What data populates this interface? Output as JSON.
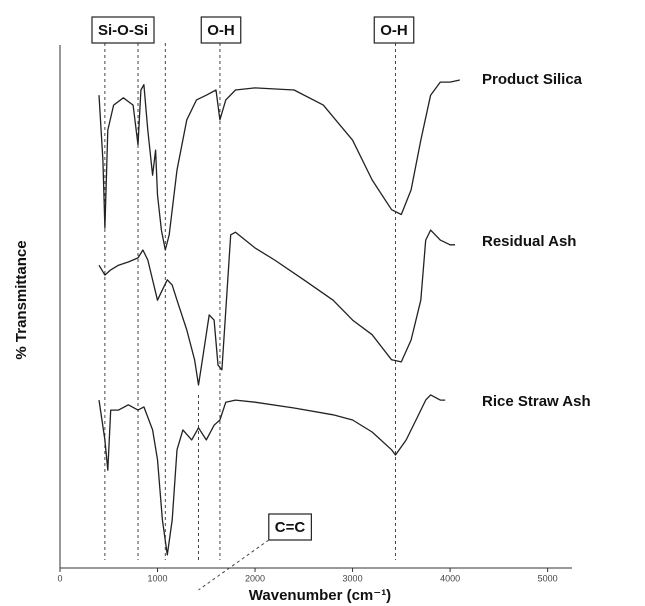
{
  "chart_data": {
    "type": "line",
    "x_label": "Wavenumber (cm⁻¹)",
    "y_label": "% Transmittance",
    "xlim": [
      0,
      5250
    ],
    "ylim": [
      0,
      100
    ],
    "xticks": [
      0,
      1000,
      2000,
      3000,
      4000,
      5000
    ],
    "grid": false,
    "series": [
      {
        "name": "Product Silica",
        "color": "#222222",
        "x": [
          400,
          440,
          460,
          490,
          550,
          650,
          750,
          800,
          830,
          860,
          900,
          950,
          980,
          1000,
          1040,
          1080,
          1120,
          1200,
          1300,
          1400,
          1500,
          1600,
          1640,
          1700,
          1800,
          2000,
          2400,
          2700,
          3000,
          3200,
          3400,
          3500,
          3600,
          3700,
          3800,
          3900,
          4000,
          4100
        ],
        "values": [
          90.4,
          78.0,
          65.0,
          83.7,
          88.5,
          89.9,
          88.5,
          80.9,
          91.4,
          92.4,
          83.7,
          75.1,
          79.9,
          71.3,
          64.6,
          60.8,
          63.7,
          76.1,
          85.7,
          89.5,
          90.4,
          91.4,
          85.7,
          89.5,
          91.4,
          91.8,
          91.4,
          88.5,
          81.8,
          74.2,
          68.5,
          67.6,
          72.3,
          81.8,
          90.4,
          92.9,
          92.9,
          93.3
        ]
      },
      {
        "name": "Residual Ash",
        "color": "#222222",
        "x": [
          400,
          460,
          520,
          600,
          700,
          800,
          850,
          900,
          1000,
          1050,
          1100,
          1150,
          1200,
          1300,
          1380,
          1420,
          1460,
          1530,
          1580,
          1620,
          1660,
          1700,
          1750,
          1800,
          1900,
          2000,
          2200,
          2500,
          2800,
          3000,
          3200,
          3400,
          3500,
          3600,
          3700,
          3750,
          3800,
          3900,
          4000,
          4050
        ],
        "values": [
          57.9,
          56.0,
          57.0,
          57.9,
          58.5,
          59.3,
          60.8,
          58.9,
          51.2,
          53.2,
          55.1,
          54.1,
          51.2,
          45.5,
          39.8,
          35.0,
          39.8,
          48.4,
          47.4,
          38.8,
          37.9,
          49.3,
          63.7,
          64.2,
          62.7,
          61.2,
          58.9,
          55.1,
          51.2,
          47.4,
          44.6,
          39.8,
          39.4,
          43.6,
          51.2,
          62.7,
          64.6,
          62.7,
          61.8,
          61.8
        ]
      },
      {
        "name": "Rice Straw Ash",
        "color": "#222222",
        "x": [
          400,
          460,
          490,
          520,
          600,
          700,
          800,
          860,
          950,
          1000,
          1050,
          1100,
          1150,
          1200,
          1260,
          1350,
          1420,
          1500,
          1580,
          1640,
          1700,
          1800,
          2000,
          2400,
          2800,
          3000,
          3200,
          3400,
          3440,
          3550,
          3650,
          3750,
          3800,
          3900,
          3950
        ],
        "values": [
          32.1,
          24.5,
          18.7,
          30.2,
          30.2,
          31.2,
          30.2,
          30.8,
          26.4,
          20.7,
          9.2,
          2.5,
          9.2,
          22.6,
          26.4,
          24.5,
          26.8,
          24.5,
          27.3,
          28.3,
          31.7,
          32.1,
          31.7,
          30.6,
          29.3,
          28.3,
          26.0,
          22.6,
          21.6,
          24.5,
          28.3,
          32.1,
          33.1,
          32.1,
          32.1
        ]
      }
    ],
    "annotations": [
      {
        "text": "Si-O-Si",
        "x": [
          460,
          800,
          1080
        ]
      },
      {
        "text": "O-H",
        "x": [
          1640
        ]
      },
      {
        "text": "O-H",
        "x": [
          3440
        ]
      },
      {
        "text": "C=C",
        "x": [
          1420
        ]
      }
    ]
  }
}
